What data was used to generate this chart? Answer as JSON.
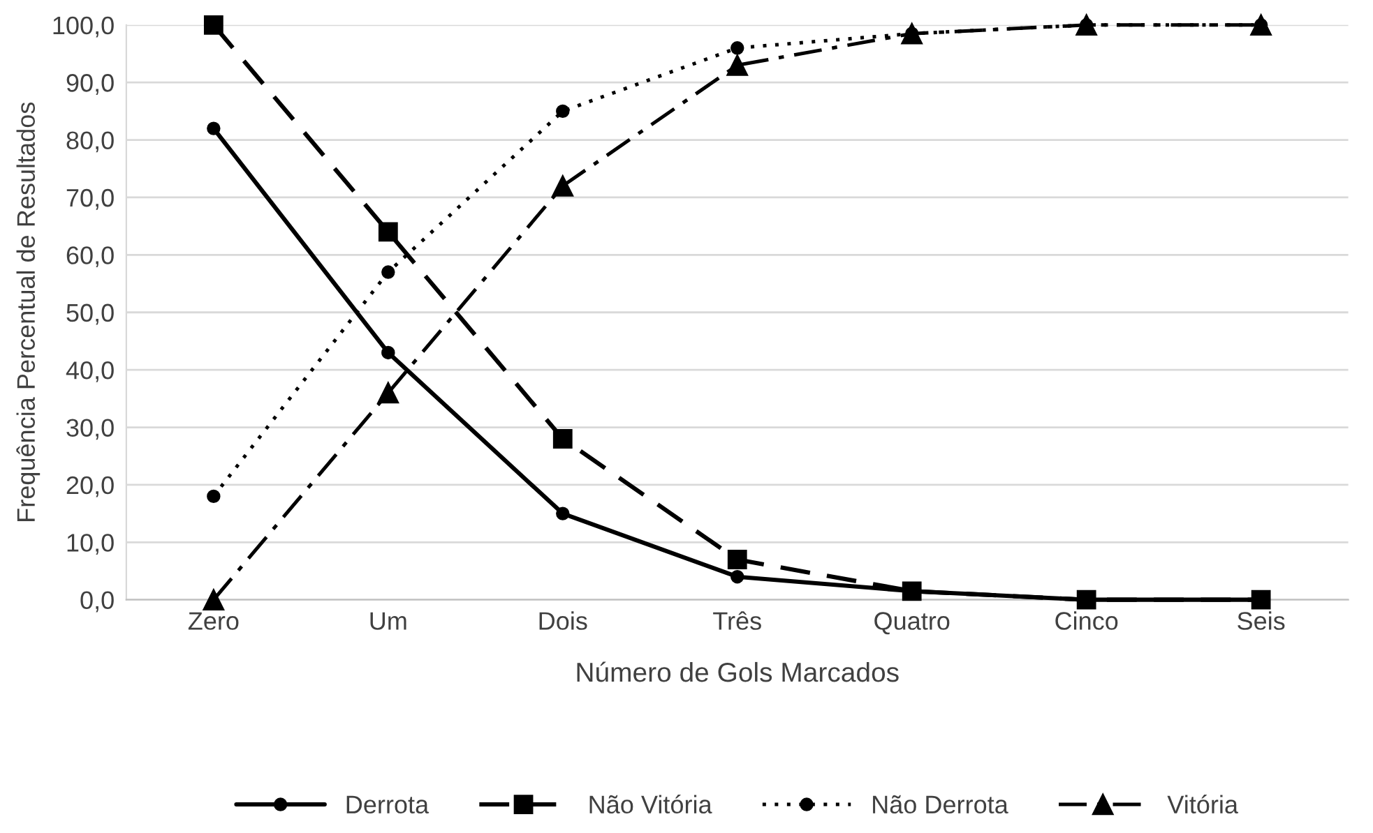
{
  "chart_data": {
    "type": "line",
    "xlabel": "Número de Gols Marcados",
    "ylabel": "Frequência Percentual de Resultados",
    "categories": [
      "Zero",
      "Um",
      "Dois",
      "Três",
      "Quatro",
      "Cinco",
      "Seis"
    ],
    "series": [
      {
        "name": "Derrota",
        "color": "#000000",
        "marker": "circle",
        "line_style": "solid",
        "values": [
          82,
          43,
          15,
          4,
          1.5,
          0,
          0
        ]
      },
      {
        "name": "Não Vitória",
        "color": "#000000",
        "marker": "square",
        "line_style": "dashed",
        "values": [
          100,
          64,
          28,
          7,
          1.5,
          0,
          0
        ]
      },
      {
        "name": "Não Derrota",
        "color": "#000000",
        "marker": "circle",
        "line_style": "dotted",
        "values": [
          18,
          57,
          85,
          96,
          98.5,
          100,
          100
        ]
      },
      {
        "name": "Vitória",
        "color": "#000000",
        "marker": "triangle",
        "line_style": "dashdot",
        "values": [
          0,
          36,
          72,
          93,
          98.5,
          100,
          100
        ]
      }
    ],
    "ylim": [
      0,
      100
    ],
    "yticks": [
      {
        "value": 0,
        "label": "0,0"
      },
      {
        "value": 10,
        "label": "10,0"
      },
      {
        "value": 20,
        "label": "20,0"
      },
      {
        "value": 30,
        "label": "30,0"
      },
      {
        "value": 40,
        "label": "40,0"
      },
      {
        "value": 50,
        "label": "50,0"
      },
      {
        "value": 60,
        "label": "60,0"
      },
      {
        "value": 70,
        "label": "70,0"
      },
      {
        "value": 80,
        "label": "80,0"
      },
      {
        "value": 90,
        "label": "90,0"
      },
      {
        "value": 100,
        "label": "100,0"
      }
    ],
    "grid": "y",
    "legend": "bottom"
  }
}
